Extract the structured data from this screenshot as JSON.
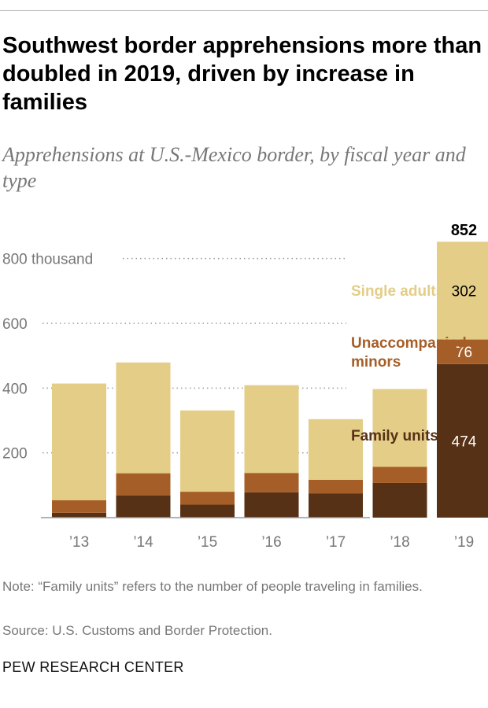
{
  "title": "Southwest border apprehensions more than doubled in 2019, driven by increase in families",
  "subtitle": "Apprehensions at U.S.-Mexico border, by fiscal year and type",
  "note": "Note: “Family units” refers to the number of people traveling in families.",
  "source": "Source: U.S. Customs and Border Protection.",
  "brand": "PEW RESEARCH CENTER",
  "chart_data": {
    "type": "bar",
    "stacked": true,
    "categories": [
      "’13",
      "’14",
      "’15",
      "’16",
      "’17",
      "’18",
      "’19"
    ],
    "series": [
      {
        "name": "Family units",
        "color": "#563115",
        "values": [
          15,
          68,
          40,
          78,
          75,
          107,
          474
        ]
      },
      {
        "name": "Unaccompanied minors",
        "color": "#a65e28",
        "values": [
          39,
          69,
          40,
          60,
          42,
          50,
          76
        ]
      },
      {
        "name": "Single adults",
        "color": "#e3cd87",
        "values": [
          360,
          342,
          251,
          271,
          187,
          240,
          302
        ]
      }
    ],
    "yticks": [
      {
        "value": 200,
        "label": "200"
      },
      {
        "value": 400,
        "label": "400"
      },
      {
        "value": 600,
        "label": "600"
      },
      {
        "value": 800,
        "label": "800 thousand"
      }
    ],
    "ylim": [
      0,
      900
    ],
    "grid": true,
    "total_label": {
      "category": "’19",
      "text": "852"
    },
    "data_labels": [
      {
        "series": "Family units",
        "text": "474"
      },
      {
        "series": "Unaccompanied minors",
        "text": "76"
      },
      {
        "series": "Single adults",
        "text": "302"
      }
    ],
    "legend_labels": [
      {
        "series": "Single adults",
        "lines": [
          "Single adults"
        ]
      },
      {
        "series": "Unaccompanied minors",
        "lines": [
          "Unaccompanied",
          "minors"
        ]
      },
      {
        "series": "Family units",
        "lines": [
          "Family units"
        ]
      }
    ],
    "legend": "right"
  }
}
